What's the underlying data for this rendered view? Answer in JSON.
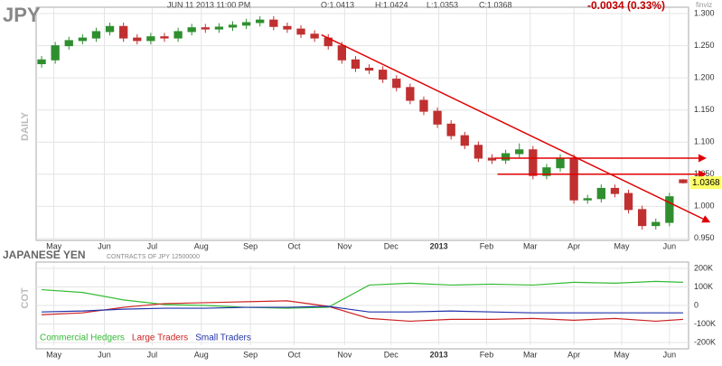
{
  "symbol": "JPY",
  "timeframe": "DAILY",
  "date": "JUN 11 2013 11:00 PM",
  "ohlc_labels": [
    "O:1.0413",
    "H:1.0424",
    "L:1.0353",
    "C:1.0368"
  ],
  "change": "-0.0034 (0.33%)",
  "brand": "finviz",
  "cot_title": "JAPANESE YEN",
  "cot_subtitle": "CONTRACTS OF JPY 12500000",
  "cot_label": "COT",
  "chart_data": [
    {
      "type": "candlestick",
      "open": [
        1.222,
        1.228,
        1.25,
        1.258,
        1.262,
        1.272,
        1.28,
        1.262,
        1.258,
        1.264,
        1.262,
        1.272,
        1.278,
        1.276,
        1.279,
        1.282,
        1.286,
        1.29,
        1.28,
        1.276,
        1.268,
        1.262,
        1.25,
        1.228,
        1.215,
        1.212,
        1.198,
        1.185,
        1.165,
        1.148,
        1.128,
        1.11,
        1.095,
        1.075,
        1.072,
        1.082,
        1.088,
        1.048,
        1.06,
        1.075,
        1.01,
        1.012,
        1.028,
        1.02,
        0.995,
        0.97,
        0.975,
        1.0413
      ],
      "high": [
        1.234,
        1.256,
        1.264,
        1.268,
        1.278,
        1.286,
        1.286,
        1.268,
        1.27,
        1.27,
        1.278,
        1.284,
        1.284,
        1.285,
        1.288,
        1.292,
        1.296,
        1.296,
        1.286,
        1.282,
        1.274,
        1.268,
        1.256,
        1.234,
        1.221,
        1.218,
        1.204,
        1.191,
        1.171,
        1.154,
        1.134,
        1.116,
        1.101,
        1.081,
        1.088,
        1.098,
        1.094,
        1.066,
        1.081,
        1.081,
        1.018,
        1.034,
        1.034,
        1.026,
        1.001,
        0.981,
        1.021,
        1.0424
      ],
      "low": [
        1.216,
        1.222,
        1.244,
        1.252,
        1.256,
        1.266,
        1.256,
        1.252,
        1.252,
        1.256,
        1.256,
        1.266,
        1.27,
        1.27,
        1.273,
        1.276,
        1.28,
        1.274,
        1.27,
        1.262,
        1.256,
        1.244,
        1.222,
        1.209,
        1.206,
        1.192,
        1.179,
        1.159,
        1.142,
        1.122,
        1.104,
        1.089,
        1.069,
        1.066,
        1.066,
        1.076,
        1.042,
        1.042,
        1.054,
        1.004,
        1.004,
        1.006,
        1.014,
        0.989,
        0.964,
        0.964,
        0.969,
        1.0353
      ],
      "close": [
        1.228,
        1.25,
        1.258,
        1.262,
        1.272,
        1.28,
        1.262,
        1.258,
        1.264,
        1.262,
        1.272,
        1.278,
        1.276,
        1.279,
        1.282,
        1.286,
        1.29,
        1.28,
        1.276,
        1.268,
        1.262,
        1.25,
        1.228,
        1.215,
        1.212,
        1.198,
        1.185,
        1.165,
        1.148,
        1.128,
        1.11,
        1.095,
        1.075,
        1.072,
        1.082,
        1.088,
        1.048,
        1.06,
        1.075,
        1.01,
        1.012,
        1.028,
        1.02,
        0.995,
        0.97,
        0.975,
        1.015,
        1.0368
      ],
      "up_color": "#2f8f2f",
      "down_color": "#c03030",
      "xlim": [
        -0.4,
        47.4
      ],
      "xticks": [
        {
          "value": 0.9,
          "label": "May"
        },
        {
          "value": 4.6,
          "label": "Jun"
        },
        {
          "value": 8.1,
          "label": "Jul"
        },
        {
          "value": 11.7,
          "label": "Aug"
        },
        {
          "value": 15.3,
          "label": "Sep"
        },
        {
          "value": 18.5,
          "label": "Oct"
        },
        {
          "value": 22.2,
          "label": "Nov"
        },
        {
          "value": 25.6,
          "label": "Dec"
        },
        {
          "value": 29.1,
          "label": "2013"
        },
        {
          "value": 32.6,
          "label": "Feb"
        },
        {
          "value": 35.8,
          "label": "Mar"
        },
        {
          "value": 39.0,
          "label": "Apr"
        },
        {
          "value": 42.5,
          "label": "May"
        },
        {
          "value": 46.0,
          "label": "Jun"
        }
      ],
      "ylim": [
        0.947,
        1.305
      ],
      "yticks": [
        {
          "value": 0.95,
          "label": "0.950"
        },
        {
          "value": 1.0,
          "label": "1.000"
        },
        {
          "value": 1.05,
          "label": "1.050"
        },
        {
          "value": 1.1,
          "label": "1.100"
        },
        {
          "value": 1.15,
          "label": "1.150"
        },
        {
          "value": 1.2,
          "label": "1.200"
        },
        {
          "value": 1.25,
          "label": "1.250"
        },
        {
          "value": 1.3,
          "label": "1.300"
        }
      ],
      "grid": true,
      "trend_lines": [
        {
          "from": [
            20.5,
            1.267
          ],
          "to": [
            48.9,
            0.976
          ]
        },
        {
          "from": [
            33.2,
            1.075
          ],
          "to": [
            48.6,
            1.075
          ]
        },
        {
          "from": [
            33.4,
            1.05
          ],
          "to": [
            48.6,
            1.05
          ]
        }
      ],
      "trend_color": "#e00000",
      "last_color": "#ffff66"
    },
    {
      "type": "line",
      "x": [
        0,
        3,
        6,
        9,
        12,
        15,
        18,
        21,
        24,
        27,
        30,
        33,
        36,
        39,
        42,
        45,
        47
      ],
      "series": [
        {
          "name": "Commercial Hedgers",
          "color": "#33bb33",
          "values": [
            85000,
            70000,
            30000,
            5000,
            0,
            -10000,
            -15000,
            -10000,
            110000,
            120000,
            110000,
            115000,
            110000,
            125000,
            120000,
            130000,
            125000
          ]
        },
        {
          "name": "Large Traders",
          "color": "#cc2222",
          "values": [
            -50000,
            -40000,
            -10000,
            10000,
            15000,
            20000,
            25000,
            -5000,
            -70000,
            -85000,
            -75000,
            -75000,
            -70000,
            -80000,
            -70000,
            -85000,
            -75000
          ]
        },
        {
          "name": "Small Traders",
          "color": "#2233aa",
          "values": [
            -35000,
            -30000,
            -20000,
            -15000,
            -15000,
            -10000,
            -10000,
            -5000,
            -35000,
            -35000,
            -30000,
            -35000,
            -40000,
            -40000,
            -40000,
            -40000,
            -40000
          ]
        }
      ],
      "xlim": [
        -0.4,
        47.4
      ],
      "xticks": [
        {
          "value": 0.9,
          "label": "May"
        },
        {
          "value": 4.6,
          "label": "Jun"
        },
        {
          "value": 8.1,
          "label": "Jul"
        },
        {
          "value": 11.7,
          "label": "Aug"
        },
        {
          "value": 15.3,
          "label": "Sep"
        },
        {
          "value": 18.5,
          "label": "Oct"
        },
        {
          "value": 22.2,
          "label": "Nov"
        },
        {
          "value": 25.6,
          "label": "Dec"
        },
        {
          "value": 29.1,
          "label": "2013"
        },
        {
          "value": 32.6,
          "label": "Feb"
        },
        {
          "value": 35.8,
          "label": "Mar"
        },
        {
          "value": 39.0,
          "label": "Apr"
        },
        {
          "value": 42.5,
          "label": "May"
        },
        {
          "value": 46.0,
          "label": "Jun"
        }
      ],
      "ylim": [
        -200000,
        200000
      ],
      "yticks": [
        {
          "value": -200000,
          "label": "-200K"
        },
        {
          "value": -100000,
          "label": "-100K"
        },
        0,
        {
          "value": 100000,
          "label": "100K"
        },
        {
          "value": 200000,
          "label": "200K"
        }
      ],
      "grid": true
    }
  ]
}
